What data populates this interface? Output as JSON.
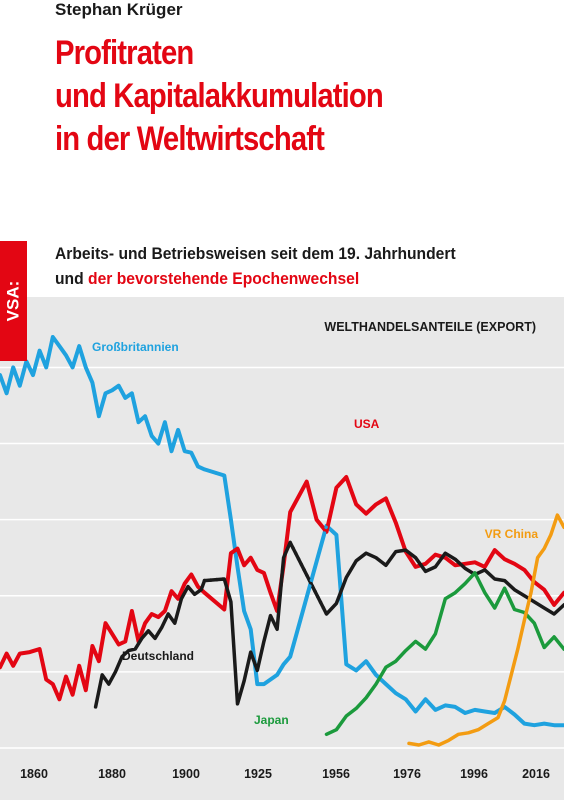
{
  "book": {
    "author": "Stephan Krüger",
    "title_lines": [
      "Profitraten",
      "und Kapitalakkumulation",
      "in der Weltwirtschaft"
    ],
    "subtitle_line1": "Arbeits- und Betriebsweisen seit dem 19. Jahrhundert",
    "subtitle_line2_prefix": "und ",
    "subtitle_line2_highlight": "der bevorstehende Epochenwechsel",
    "publisher_tab": "VSA:"
  },
  "colors": {
    "title_red": "#e30613",
    "tab_red": "#e30613",
    "chart_bg": "#e8e8e8",
    "gridline": "#ffffff",
    "great_britain": "#1fa2df",
    "usa": "#e30613",
    "germany": "#1a1a1a",
    "japan": "#1b9a3c",
    "china": "#f39c12"
  },
  "chart_data": {
    "type": "line",
    "title": "WELTHANDELSANTEILE (EXPORT)",
    "x_ticks": [
      "1860",
      "1880",
      "1900",
      "1925",
      "1956",
      "1976",
      "1996",
      "2016"
    ],
    "xlim": [
      1851,
      2022
    ],
    "ylim": [
      0,
      27
    ],
    "grid": "horizontal",
    "series": [
      {
        "name": "Großbritannien",
        "key": "great_britain",
        "x": [
          1851,
          1853,
          1855,
          1857,
          1859,
          1861,
          1863,
          1865,
          1867,
          1869,
          1871,
          1873,
          1875,
          1877,
          1879,
          1881,
          1883,
          1885,
          1887,
          1889,
          1891,
          1893,
          1895,
          1897,
          1899,
          1901,
          1903,
          1905,
          1907,
          1909,
          1911,
          1913,
          1919,
          1921,
          1923,
          1925,
          1927,
          1929,
          1931,
          1933,
          1935,
          1937,
          1939,
          1950,
          1953,
          1956,
          1959,
          1962,
          1965,
          1968,
          1971,
          1974,
          1977,
          1980,
          1983,
          1986,
          1989,
          1992,
          1995,
          1998,
          2001,
          2004,
          2007,
          2010,
          2013,
          2016,
          2019,
          2022
        ],
        "y": [
          24.5,
          23.3,
          25,
          23.8,
          25.4,
          24.5,
          26.1,
          25,
          27,
          26.4,
          25.8,
          25,
          26.4,
          25,
          24,
          21.8,
          23.3,
          23.5,
          23.8,
          23,
          23.3,
          21.4,
          21.8,
          20.5,
          20,
          21.4,
          19.5,
          20.9,
          19.5,
          19.4,
          18.5,
          18.3,
          17.9,
          15,
          11.9,
          9,
          7.8,
          4.2,
          4.2,
          4.5,
          4.8,
          5.5,
          6,
          14.6,
          14,
          5.5,
          5.1,
          5.7,
          4.8,
          4.2,
          3.6,
          3.2,
          2.4,
          3.2,
          2.5,
          2.8,
          2.7,
          2.3,
          2.5,
          2.4,
          2.3,
          2.7,
          2.2,
          1.6,
          1.5,
          1.6,
          1.5,
          1.5
        ]
      },
      {
        "name": "USA",
        "key": "usa",
        "x": [
          1851,
          1853,
          1855,
          1857,
          1860,
          1863,
          1865,
          1867,
          1869,
          1871,
          1873,
          1875,
          1877,
          1879,
          1881,
          1883,
          1885,
          1887,
          1889,
          1891,
          1893,
          1895,
          1897,
          1899,
          1901,
          1903,
          1905,
          1907,
          1909,
          1911,
          1913,
          1919,
          1921,
          1923,
          1925,
          1927,
          1929,
          1931,
          1933,
          1935,
          1937,
          1939,
          1944,
          1947,
          1950,
          1953,
          1956,
          1959,
          1962,
          1965,
          1968,
          1971,
          1974,
          1977,
          1980,
          1983,
          1986,
          1989,
          1992,
          1995,
          1998,
          2001,
          2004,
          2007,
          2010,
          2013,
          2016,
          2019,
          2022
        ],
        "y": [
          5.3,
          6.2,
          5.4,
          6.2,
          6.3,
          6.5,
          4.5,
          4.2,
          3.2,
          4.7,
          3.5,
          5.4,
          3.8,
          6.7,
          5.7,
          8.2,
          7.5,
          6.8,
          7,
          9,
          7,
          8.2,
          8.8,
          8.6,
          9,
          10.3,
          9.8,
          10.8,
          11.4,
          10.6,
          10.2,
          9.1,
          12.8,
          13.1,
          12,
          12.5,
          11.7,
          11.5,
          10.2,
          9,
          12,
          15.5,
          17.5,
          15,
          14.2,
          17.1,
          17.8,
          16,
          15.4,
          16,
          16.4,
          14.8,
          12.9,
          11.9,
          12.1,
          12.7,
          12.5,
          12,
          12.1,
          12.2,
          11.9,
          13,
          12.4,
          12.1,
          11.7,
          10.9,
          10.4,
          9.4,
          10.2
        ]
      },
      {
        "name": "Deutschland",
        "key": "germany",
        "x": [
          1880,
          1882,
          1884,
          1886,
          1888,
          1890,
          1892,
          1894,
          1896,
          1898,
          1900,
          1902,
          1904,
          1906,
          1908,
          1910,
          1912,
          1913,
          1919,
          1921,
          1923,
          1925,
          1927,
          1929,
          1931,
          1933,
          1935,
          1937,
          1939,
          1950,
          1953,
          1956,
          1959,
          1962,
          1965,
          1968,
          1971,
          1974,
          1977,
          1980,
          1983,
          1986,
          1989,
          1992,
          1995,
          1998,
          2001,
          2004,
          2007,
          2010,
          2013,
          2016,
          2019,
          2022
        ],
        "y": [
          2.7,
          4.8,
          4.2,
          5,
          6,
          6.4,
          6.5,
          7.2,
          7.7,
          7.2,
          7.9,
          8.8,
          8.2,
          9.8,
          10.6,
          10.1,
          10.4,
          11,
          11.1,
          9.6,
          2.9,
          4.4,
          6.3,
          5.1,
          7,
          8.7,
          7.8,
          12.5,
          13.5,
          8.8,
          9.5,
          11.2,
          12.3,
          12.8,
          12.5,
          12,
          12.9,
          13,
          12.5,
          11.6,
          11.9,
          12.8,
          12.4,
          11.8,
          11.4,
          11.7,
          11.1,
          11,
          10.4,
          10,
          9.6,
          9.2,
          8.8,
          9.4
        ]
      },
      {
        "name": "Japan",
        "key": "japan",
        "x": [
          1950,
          1953,
          1956,
          1959,
          1962,
          1965,
          1968,
          1971,
          1974,
          1977,
          1980,
          1983,
          1986,
          1989,
          1992,
          1995,
          1998,
          2001,
          2004,
          2007,
          2010,
          2013,
          2016,
          2019,
          2022
        ],
        "y": [
          0.9,
          1.2,
          2.1,
          2.6,
          3.3,
          4.2,
          5.3,
          5.7,
          6.4,
          7,
          6.5,
          7.5,
          9.8,
          10.2,
          10.8,
          11.5,
          10.2,
          9.2,
          10.5,
          9.1,
          8.9,
          8.2,
          6.6,
          7.3,
          6.5
        ]
      },
      {
        "name": "VR China",
        "key": "china",
        "x": [
          1975,
          1978,
          1981,
          1984,
          1987,
          1990,
          1993,
          1996,
          1999,
          2002,
          2004,
          2006,
          2008,
          2010,
          2012,
          2014,
          2016,
          2018,
          2020,
          2022
        ],
        "y": [
          0.3,
          0.2,
          0.4,
          0.2,
          0.5,
          0.9,
          1.0,
          1.2,
          1.6,
          2.0,
          3.1,
          4.8,
          6.5,
          8.4,
          10.2,
          12.5,
          13.1,
          14.0,
          15.3,
          14.5
        ]
      }
    ],
    "annotations": [
      {
        "label": "Großbritannien",
        "key": "great_britain"
      },
      {
        "label": "USA",
        "key": "usa"
      },
      {
        "label": "Deutschland",
        "key": "germany"
      },
      {
        "label": "Japan",
        "key": "japan"
      },
      {
        "label": "VR China",
        "key": "china"
      }
    ]
  }
}
